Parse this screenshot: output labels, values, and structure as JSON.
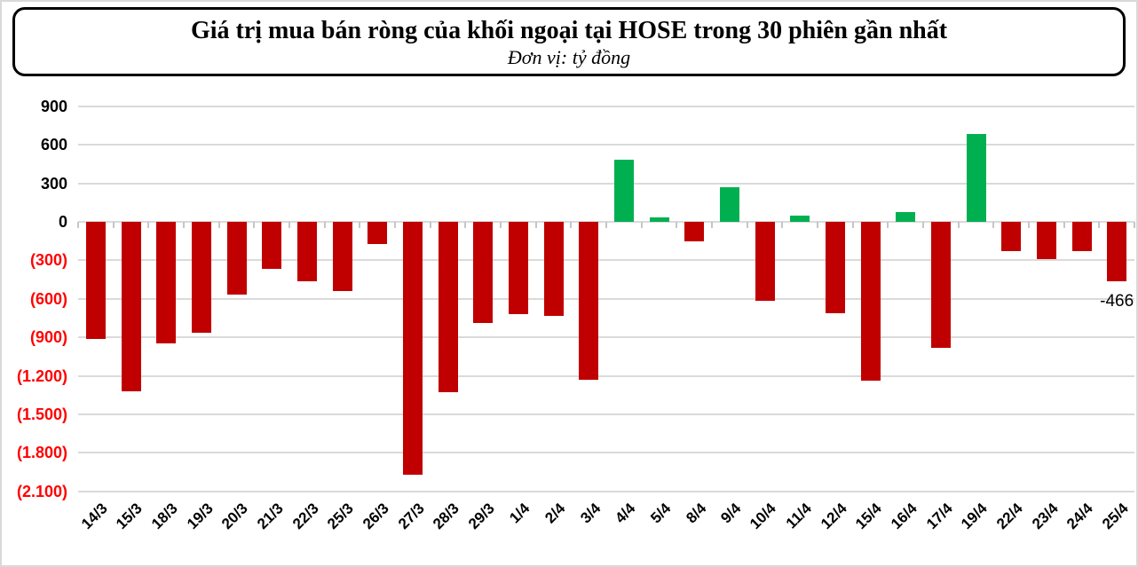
{
  "title": {
    "text": "Giá trị mua bán ròng của khối ngoại tại HOSE trong 30 phiên gần nhất",
    "subtitle": "Đơn vị: tỷ đồng"
  },
  "chart_data": {
    "type": "bar",
    "title": "Giá trị mua bán ròng của khối ngoại tại HOSE trong 30 phiên gần nhất",
    "subtitle": "Đơn vị: tỷ đồng",
    "unit": "tỷ đồng",
    "categories": [
      "14/3",
      "15/3",
      "18/3",
      "19/3",
      "20/3",
      "21/3",
      "22/3",
      "25/3",
      "26/3",
      "27/3",
      "28/3",
      "29/3",
      "1/4",
      "2/4",
      "3/4",
      "4/4",
      "5/4",
      "8/4",
      "9/4",
      "10/4",
      "11/4",
      "12/4",
      "15/4",
      "16/4",
      "17/4",
      "19/4",
      "22/4",
      "23/4",
      "24/4",
      "25/4"
    ],
    "values": [
      -910,
      -1320,
      -950,
      -865,
      -565,
      -368,
      -462,
      -540,
      -170,
      -1970,
      -1330,
      -790,
      -720,
      -736,
      -1228,
      485,
      35,
      -150,
      270,
      -614,
      46,
      -714,
      -1235,
      75,
      -980,
      685,
      -225,
      -287,
      -230,
      -466
    ],
    "data_labels": [
      {
        "index": 29,
        "text": "-466"
      }
    ],
    "ylim": [
      -2100,
      900
    ],
    "ytick_step": 300,
    "ytick_labels": [
      "900",
      "600",
      "300",
      "0",
      "(300)",
      "(600)",
      "(900)",
      "(1.200)",
      "(1.500)",
      "(1.800)",
      "(2.100)"
    ],
    "grid": true,
    "legend": "none",
    "colors": {
      "positive": "#00B050",
      "negative": "#C00000",
      "axis_negative_label": "#FF0000",
      "gridline": "#DADADA"
    }
  }
}
